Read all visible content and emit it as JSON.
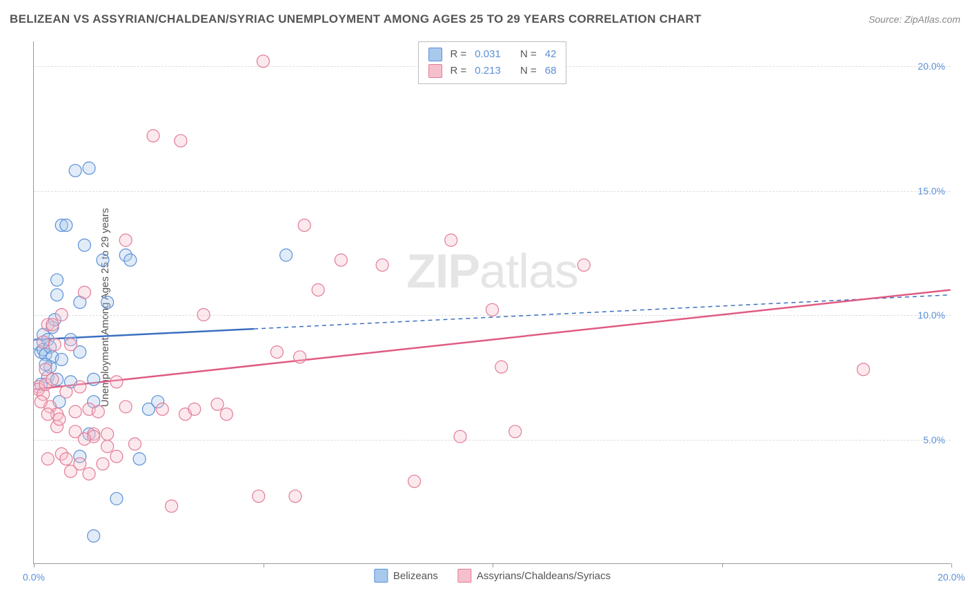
{
  "title": "BELIZEAN VS ASSYRIAN/CHALDEAN/SYRIAC UNEMPLOYMENT AMONG AGES 25 TO 29 YEARS CORRELATION CHART",
  "source_label": "Source: ZipAtlas.com",
  "y_axis_label": "Unemployment Among Ages 25 to 29 years",
  "watermark": {
    "part1": "ZIP",
    "part2": "atlas"
  },
  "chart": {
    "type": "scatter",
    "xlim": [
      0,
      20
    ],
    "ylim": [
      0,
      21
    ],
    "x_ticks": [
      0,
      5,
      10,
      15,
      20
    ],
    "x_tick_labels": [
      "0.0%",
      "",
      "",
      "",
      "20.0%"
    ],
    "y_ticks": [
      5,
      10,
      15,
      20
    ],
    "y_tick_labels": [
      "5.0%",
      "10.0%",
      "15.0%",
      "20.0%"
    ],
    "grid_color": "#dddddd",
    "background_color": "#ffffff",
    "axis_color": "#999999",
    "tick_label_color": "#5b8fd6",
    "marker_radius": 9,
    "marker_fill_opacity": 0.35,
    "marker_stroke_width": 1.2
  },
  "series": [
    {
      "id": "belizeans",
      "label": "Belizeans",
      "color_fill": "#a8c8ec",
      "color_stroke": "#5b8fd6",
      "stats": {
        "R_label": "R =",
        "R": "0.031",
        "N_label": "N =",
        "N": "42"
      },
      "trend": {
        "y_start": 9.0,
        "y_end": 10.8,
        "solid_until_x": 4.8,
        "color": "#3b6fc0",
        "width": 2.5
      },
      "points": [
        [
          0.1,
          8.8
        ],
        [
          0.15,
          8.5
        ],
        [
          0.2,
          9.2
        ],
        [
          0.2,
          8.6
        ],
        [
          0.25,
          8.4
        ],
        [
          0.3,
          9.0
        ],
        [
          0.3,
          7.5
        ],
        [
          0.35,
          8.7
        ],
        [
          0.4,
          8.3
        ],
        [
          0.4,
          9.5
        ],
        [
          0.5,
          10.8
        ],
        [
          0.5,
          11.4
        ],
        [
          0.5,
          7.4
        ],
        [
          0.55,
          6.5
        ],
        [
          0.6,
          13.6
        ],
        [
          0.7,
          13.6
        ],
        [
          0.8,
          9.0
        ],
        [
          0.8,
          7.3
        ],
        [
          0.9,
          15.8
        ],
        [
          1.0,
          10.5
        ],
        [
          1.0,
          4.3
        ],
        [
          1.0,
          8.5
        ],
        [
          1.1,
          12.8
        ],
        [
          1.2,
          15.9
        ],
        [
          1.2,
          5.2
        ],
        [
          1.3,
          6.5
        ],
        [
          1.3,
          1.1
        ],
        [
          1.3,
          7.4
        ],
        [
          1.5,
          12.2
        ],
        [
          1.6,
          10.5
        ],
        [
          1.8,
          2.6
        ],
        [
          2.0,
          12.4
        ],
        [
          2.1,
          12.2
        ],
        [
          2.3,
          4.2
        ],
        [
          2.5,
          6.2
        ],
        [
          2.7,
          6.5
        ],
        [
          5.5,
          12.4
        ],
        [
          0.35,
          7.9
        ],
        [
          0.45,
          9.8
        ],
        [
          0.15,
          7.2
        ],
        [
          0.25,
          8.0
        ],
        [
          0.6,
          8.2
        ]
      ]
    },
    {
      "id": "acs",
      "label": "Assyrians/Chaldeans/Syriacs",
      "color_fill": "#f5c0cc",
      "color_stroke": "#e27a96",
      "stats": {
        "R_label": "R =",
        "R": "0.213",
        "N_label": "N =",
        "N": "68"
      },
      "trend": {
        "y_start": 7.0,
        "y_end": 11.0,
        "solid_until_x": 20,
        "color": "#e05a82",
        "width": 2.5
      },
      "points": [
        [
          0.1,
          7.1
        ],
        [
          0.1,
          7.0
        ],
        [
          0.2,
          6.8
        ],
        [
          0.2,
          8.9
        ],
        [
          0.25,
          7.2
        ],
        [
          0.3,
          9.6
        ],
        [
          0.3,
          4.2
        ],
        [
          0.35,
          6.3
        ],
        [
          0.4,
          9.6
        ],
        [
          0.4,
          7.4
        ],
        [
          0.5,
          6.0
        ],
        [
          0.5,
          5.5
        ],
        [
          0.6,
          4.4
        ],
        [
          0.6,
          10.0
        ],
        [
          0.7,
          4.2
        ],
        [
          0.8,
          8.8
        ],
        [
          0.8,
          3.7
        ],
        [
          0.9,
          6.1
        ],
        [
          0.9,
          5.3
        ],
        [
          1.0,
          4.0
        ],
        [
          1.0,
          7.1
        ],
        [
          1.1,
          10.9
        ],
        [
          1.2,
          6.2
        ],
        [
          1.2,
          3.6
        ],
        [
          1.3,
          5.2
        ],
        [
          1.3,
          5.1
        ],
        [
          1.4,
          6.1
        ],
        [
          1.6,
          5.2
        ],
        [
          1.6,
          4.7
        ],
        [
          1.8,
          7.3
        ],
        [
          1.8,
          4.3
        ],
        [
          2.0,
          13.0
        ],
        [
          2.0,
          6.3
        ],
        [
          2.2,
          4.8
        ],
        [
          2.6,
          17.2
        ],
        [
          2.8,
          6.2
        ],
        [
          3.0,
          2.3
        ],
        [
          3.2,
          17.0
        ],
        [
          3.3,
          6.0
        ],
        [
          3.5,
          6.2
        ],
        [
          3.7,
          10.0
        ],
        [
          4.0,
          6.4
        ],
        [
          4.2,
          6.0
        ],
        [
          4.9,
          2.7
        ],
        [
          5.0,
          20.2
        ],
        [
          5.3,
          8.5
        ],
        [
          5.7,
          2.7
        ],
        [
          5.8,
          8.3
        ],
        [
          5.9,
          13.6
        ],
        [
          6.2,
          11.0
        ],
        [
          6.7,
          12.2
        ],
        [
          7.6,
          12.0
        ],
        [
          8.3,
          3.3
        ],
        [
          9.1,
          13.0
        ],
        [
          9.3,
          5.1
        ],
        [
          10.0,
          10.2
        ],
        [
          10.2,
          7.9
        ],
        [
          10.5,
          5.3
        ],
        [
          12.0,
          12.0
        ],
        [
          18.1,
          7.8
        ],
        [
          0.15,
          6.5
        ],
        [
          0.25,
          7.8
        ],
        [
          0.3,
          6.0
        ],
        [
          0.45,
          8.8
        ],
        [
          0.55,
          5.8
        ],
        [
          0.7,
          6.9
        ],
        [
          1.1,
          5.0
        ],
        [
          1.5,
          4.0
        ]
      ]
    }
  ],
  "legend": {
    "items": [
      {
        "label": "Belizeans",
        "swatch_fill": "#a8c8ec",
        "swatch_stroke": "#5b8fd6"
      },
      {
        "label": "Assyrians/Chaldeans/Syriacs",
        "swatch_fill": "#f5c0cc",
        "swatch_stroke": "#e27a96"
      }
    ]
  }
}
